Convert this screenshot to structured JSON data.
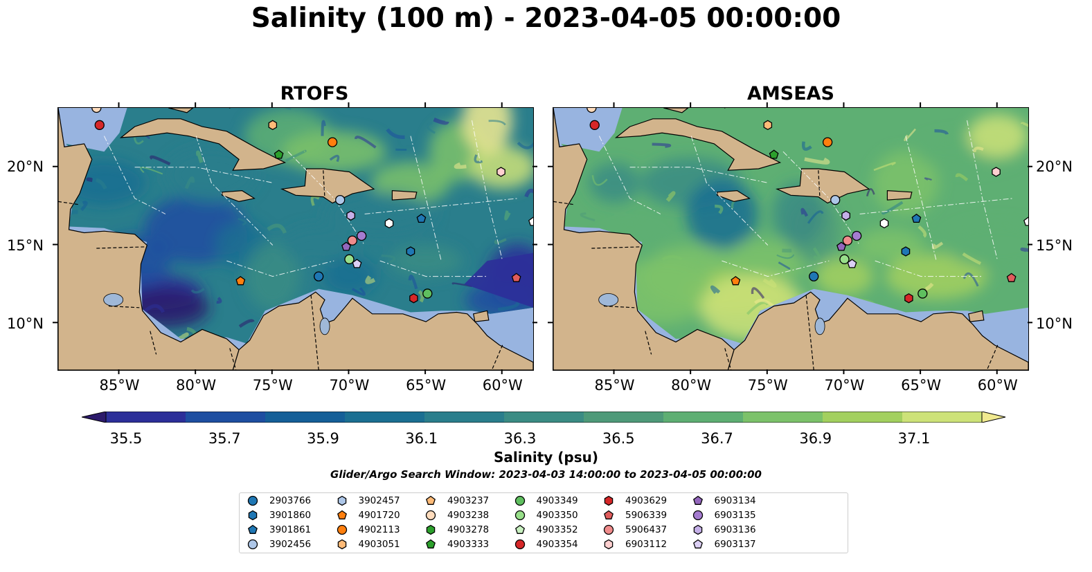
{
  "title": "Salinity (100 m) - 2023-04-05 00:00:00",
  "panels": [
    {
      "title": "RTOFS",
      "variant": "rtofs"
    },
    {
      "title": "AMSEAS",
      "variant": "amseas"
    }
  ],
  "lat_ticks": [
    "20°N",
    "15°N",
    "10°N"
  ],
  "lon_ticks": [
    "85°W",
    "80°W",
    "75°W",
    "70°W",
    "65°W",
    "60°W"
  ],
  "colorbar": {
    "ticks": [
      "35.5",
      "35.7",
      "35.9",
      "36.1",
      "36.3",
      "36.5",
      "36.7",
      "36.9",
      "37.1"
    ],
    "label": "Salinity (psu)",
    "colors": [
      "#2c1a6b",
      "#2c2f99",
      "#1e4ea1",
      "#155f98",
      "#1b6f92",
      "#2a7e8c",
      "#3b8c84",
      "#4e9a79",
      "#5eaf73",
      "#7cc26a",
      "#a3d05f",
      "#cde278",
      "#f1ea90"
    ]
  },
  "search_window": "Glider/Argo Search Window: 2023-04-03 14:00:00 to 2023-04-05 00:00:00",
  "colors": {
    "land": "#d2b48c",
    "outside_ocean": "#98b4e0",
    "lake": "#9fb8d8"
  },
  "floats": [
    {
      "id": "2903766",
      "marker": "circle",
      "color": "#1f77b4",
      "lon": null,
      "lat": null
    },
    {
      "id": "3901860",
      "marker": "hexagon",
      "color": "#1f77b4",
      "lon": -66.0,
      "lat": 14.6
    },
    {
      "id": "3901861",
      "marker": "pentagon",
      "color": "#1f77b4",
      "lon": -65.3,
      "lat": 16.7
    },
    {
      "id": "3902456",
      "marker": "circle",
      "color": "#aec7e8",
      "lon": -70.6,
      "lat": 17.9
    },
    {
      "id": "3902457",
      "marker": "hexagon",
      "color": "#aec7e8",
      "lon": null,
      "lat": null
    },
    {
      "id": "4901720",
      "marker": "pentagon",
      "color": "#ff7f0e",
      "lon": -77.1,
      "lat": 12.7
    },
    {
      "id": "4902113",
      "marker": "circle",
      "color": "#ff7f0e",
      "lon": -71.1,
      "lat": 21.6
    },
    {
      "id": "4903051",
      "marker": "hexagon",
      "color": "#ffbb78",
      "lon": -75.0,
      "lat": 22.7
    },
    {
      "id": "4903237",
      "marker": "pentagon",
      "color": "#ffbb78",
      "lon": null,
      "lat": null
    },
    {
      "id": "4903238",
      "marker": "circle",
      "color": "#ffdcbd",
      "lon": -86.5,
      "lat": 23.8
    },
    {
      "id": "4903278",
      "marker": "hexagon",
      "color": "#2ca02c",
      "lon": null,
      "lat": null
    },
    {
      "id": "4903333",
      "marker": "pentagon",
      "color": "#2ca02c",
      "lon": -74.6,
      "lat": 20.8
    },
    {
      "id": "4903349",
      "marker": "circle",
      "color": "#5fbf5f",
      "lon": -64.9,
      "lat": 11.9
    },
    {
      "id": "4903350",
      "marker": "circle",
      "color": "#98df8a",
      "lon": -70.0,
      "lat": 14.1
    },
    {
      "id": "4903352",
      "marker": "pentagon",
      "color": "#c8f0c0",
      "lon": null,
      "lat": null
    },
    {
      "id": "4903354",
      "marker": "circle",
      "color": "#d62728",
      "lon": -86.3,
      "lat": 22.7
    },
    {
      "id": "4903629",
      "marker": "hexagon",
      "color": "#d62728",
      "lon": -65.8,
      "lat": 11.6
    },
    {
      "id": "5906339",
      "marker": "pentagon",
      "color": "#e05c5c",
      "lon": -59.1,
      "lat": 12.9
    },
    {
      "id": "5906437",
      "marker": "circle",
      "color": "#f08c8c",
      "lon": -69.8,
      "lat": 15.3
    },
    {
      "id": "6903112",
      "marker": "hexagon",
      "color": "#ffd0d0",
      "lon": -60.1,
      "lat": 19.7
    },
    {
      "id": "6903134",
      "marker": "pentagon",
      "color": "#9467bd",
      "lon": -70.2,
      "lat": 14.9
    },
    {
      "id": "6903135",
      "marker": "circle",
      "color": "#a57cd0",
      "lon": -69.2,
      "lat": 15.6
    },
    {
      "id": "6903136",
      "marker": "hexagon",
      "color": "#c5b0e8",
      "lon": -69.9,
      "lat": 16.9
    },
    {
      "id": "6903137",
      "marker": "pentagon",
      "color": "#dcd0f5",
      "lon": -69.5,
      "lat": 13.8
    }
  ],
  "extra_markers": [
    {
      "marker": "hexagon",
      "color": "#ffffff",
      "lon": -67.4,
      "lat": 16.4
    },
    {
      "marker": "pentagon",
      "color": "#ffffff",
      "lon": -58.0,
      "lat": 16.5
    },
    {
      "marker": "circle",
      "color": "#1f77b4",
      "lon": -72.0,
      "lat": 13.0
    }
  ]
}
